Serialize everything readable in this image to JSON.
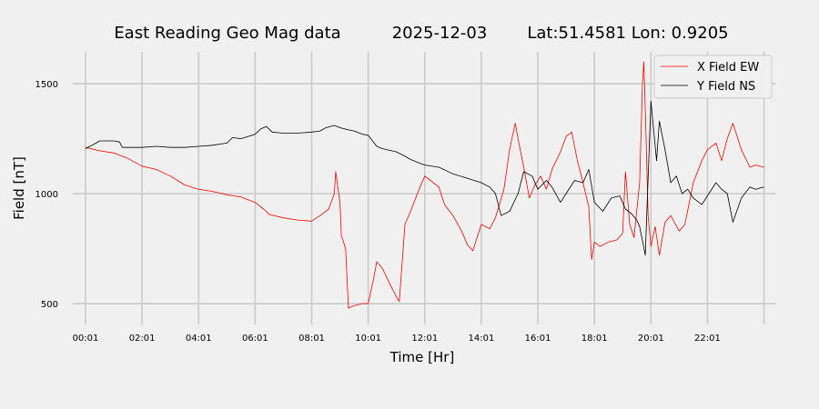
{
  "chart_data": {
    "type": "line",
    "title": "East Reading Geo Mag data",
    "title_date": "2025-12-03",
    "title_location": "Lat:51.4581  Lon: 0.9205",
    "xlabel": "Time  [Hr]",
    "ylabel": "Field  [nT]",
    "x_unit": "hours",
    "xlim": [
      -0.45,
      24.4
    ],
    "ylim": [
      405,
      1645
    ],
    "x_ticks": [
      0,
      2,
      4,
      6,
      8,
      10,
      12,
      14,
      16,
      18,
      20,
      22,
      24
    ],
    "x_tick_labels": [
      "00:01",
      "02:01",
      "04:01",
      "06:01",
      "08:01",
      "10:01",
      "12:01",
      "14:01",
      "16:01",
      "18:01",
      "20:01",
      "22:01",
      ""
    ],
    "y_ticks": [
      500,
      1000,
      1500
    ],
    "y_tick_labels": [
      "500",
      "1000",
      "1500"
    ],
    "grid": true,
    "legend_position": "top-right",
    "series": [
      {
        "name": "X Field EW",
        "color": "#ff0000",
        "x": [
          0.0,
          0.5,
          1.0,
          1.5,
          2.0,
          2.5,
          3.0,
          3.5,
          4.0,
          4.5,
          5.0,
          5.5,
          6.0,
          6.3,
          6.5,
          7.0,
          7.5,
          8.0,
          8.3,
          8.6,
          8.8,
          8.85,
          9.0,
          9.05,
          9.2,
          9.3,
          9.5,
          9.8,
          10.0,
          10.2,
          10.3,
          10.5,
          10.8,
          11.0,
          11.1,
          11.3,
          11.5,
          11.8,
          12.0,
          12.2,
          12.5,
          12.7,
          13.0,
          13.3,
          13.5,
          13.7,
          14.0,
          14.3,
          14.5,
          14.8,
          15.0,
          15.2,
          15.3,
          15.5,
          15.7,
          15.9,
          16.1,
          16.3,
          16.5,
          16.8,
          17.0,
          17.2,
          17.4,
          17.6,
          17.8,
          17.9,
          18.0,
          18.2,
          18.5,
          18.8,
          19.0,
          19.1,
          19.25,
          19.4,
          19.6,
          19.7,
          19.75,
          19.82,
          19.9,
          20.0,
          20.15,
          20.3,
          20.5,
          20.7,
          21.0,
          21.2,
          21.5,
          21.8,
          22.0,
          22.3,
          22.5,
          22.7,
          22.9,
          23.2,
          23.5,
          23.7,
          24.0
        ],
        "values": [
          1210,
          1195,
          1185,
          1160,
          1125,
          1110,
          1080,
          1040,
          1020,
          1010,
          995,
          985,
          960,
          930,
          905,
          890,
          880,
          875,
          900,
          930,
          1000,
          1100,
          960,
          810,
          750,
          480,
          490,
          500,
          500,
          620,
          690,
          660,
          580,
          530,
          510,
          860,
          920,
          1020,
          1080,
          1060,
          1030,
          950,
          900,
          830,
          770,
          740,
          860,
          840,
          890,
          1020,
          1200,
          1320,
          1250,
          1120,
          980,
          1040,
          1080,
          1020,
          1110,
          1190,
          1260,
          1280,
          1150,
          1050,
          940,
          700,
          780,
          760,
          780,
          790,
          820,
          1100,
          860,
          800,
          1050,
          1500,
          1600,
          1300,
          900,
          760,
          850,
          720,
          870,
          900,
          830,
          860,
          1050,
          1150,
          1200,
          1230,
          1150,
          1250,
          1320,
          1200,
          1120,
          1130,
          1120
        ]
      },
      {
        "name": "Y Field NS",
        "color": "#000000",
        "x": [
          0.0,
          0.3,
          0.5,
          1.0,
          1.2,
          1.3,
          1.5,
          2.0,
          2.5,
          3.0,
          3.5,
          4.0,
          4.5,
          5.0,
          5.2,
          5.5,
          6.0,
          6.2,
          6.4,
          6.6,
          7.0,
          7.5,
          8.0,
          8.3,
          8.5,
          8.8,
          9.0,
          9.3,
          9.5,
          9.8,
          10.0,
          10.3,
          10.5,
          11.0,
          11.3,
          11.5,
          11.8,
          12.0,
          12.5,
          13.0,
          13.5,
          14.0,
          14.3,
          14.5,
          14.7,
          15.0,
          15.3,
          15.5,
          15.8,
          16.0,
          16.3,
          16.5,
          16.8,
          17.0,
          17.3,
          17.6,
          17.8,
          18.0,
          18.3,
          18.6,
          18.9,
          19.1,
          19.3,
          19.5,
          19.6,
          19.8,
          20.0,
          20.2,
          20.3,
          20.5,
          20.7,
          20.9,
          21.1,
          21.3,
          21.5,
          21.8,
          22.0,
          22.3,
          22.5,
          22.7,
          22.9,
          23.2,
          23.5,
          23.7,
          24.0
        ],
        "values": [
          1205,
          1225,
          1240,
          1240,
          1235,
          1210,
          1210,
          1210,
          1215,
          1210,
          1210,
          1215,
          1220,
          1230,
          1255,
          1250,
          1270,
          1295,
          1305,
          1280,
          1275,
          1275,
          1280,
          1285,
          1300,
          1310,
          1300,
          1290,
          1285,
          1270,
          1265,
          1215,
          1205,
          1190,
          1170,
          1155,
          1140,
          1130,
          1120,
          1090,
          1070,
          1050,
          1030,
          1000,
          900,
          920,
          1000,
          1100,
          1080,
          1020,
          1060,
          1030,
          960,
          1000,
          1060,
          1050,
          1110,
          960,
          920,
          980,
          990,
          930,
          910,
          880,
          850,
          720,
          1420,
          1150,
          1330,
          1200,
          1050,
          1080,
          1000,
          1020,
          980,
          950,
          990,
          1050,
          1020,
          1000,
          870,
          980,
          1030,
          1020,
          1030
        ]
      }
    ]
  }
}
